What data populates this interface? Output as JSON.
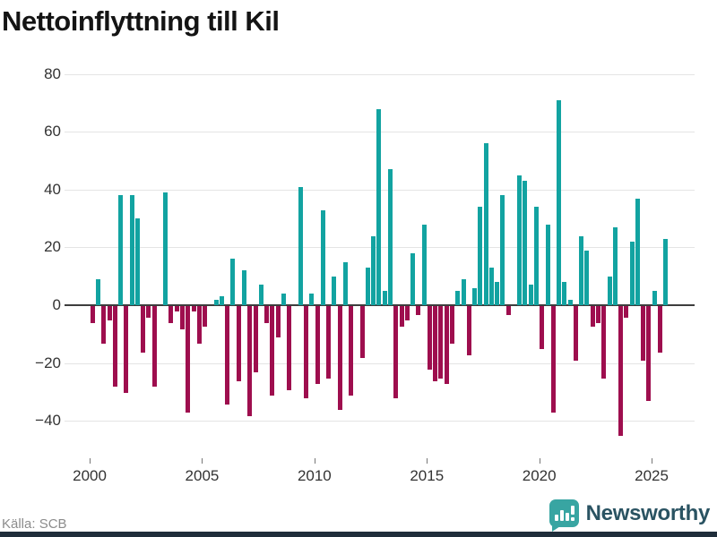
{
  "title": "Nettoinflyttning till Kil",
  "source": "Källa: SCB",
  "branding": {
    "logo_text": "Newsworthy",
    "icon_color": "#38a5a2",
    "text_color": "#2a5362",
    "bottom_bar_color": "#1f2d3a"
  },
  "colors": {
    "positive_bar": "#12a3a1",
    "negative_bar": "#9e0e4e",
    "gridline": "#e4e4e4",
    "zero_line": "#3d3d3d",
    "axis_text": "#333333"
  },
  "chart_data": {
    "type": "bar",
    "title": "Nettoinflyttning till Kil",
    "xlabel": "",
    "ylabel": "",
    "grid": true,
    "ylim": [
      -50,
      85
    ],
    "yticks": [
      80,
      60,
      40,
      20,
      0,
      -20,
      -40
    ],
    "xticks": [
      2000,
      2005,
      2010,
      2015,
      2020,
      2025
    ],
    "start_year": 2000,
    "start_quarter": 1,
    "frequency": "quarterly",
    "positive_color": "#12a3a1",
    "negative_color": "#9e0e4e",
    "values": [
      -6,
      9,
      -13,
      -5,
      -28,
      38,
      -30,
      38,
      30,
      -16,
      -4,
      -28,
      0,
      39,
      -6,
      -2,
      -8,
      -37,
      -2,
      -13,
      -7,
      0,
      2,
      3,
      -34,
      16,
      -26,
      12,
      -38,
      -23,
      7,
      -6,
      -31,
      -11,
      4,
      -29,
      0,
      41,
      -32,
      4,
      -27,
      33,
      -25,
      10,
      -36,
      15,
      -31,
      0,
      -18,
      13,
      24,
      68,
      5,
      47,
      -32,
      -7,
      -5,
      18,
      -3,
      28,
      -22,
      -26,
      -25,
      -27,
      -13,
      5,
      9,
      -17,
      6,
      34,
      56,
      13,
      8,
      38,
      -3,
      0,
      45,
      43,
      7,
      34,
      -15,
      28,
      -37,
      71,
      8,
      2,
      -19,
      24,
      19,
      -7,
      -6,
      -25,
      10,
      27,
      -45,
      -4,
      22,
      37,
      -19,
      -33,
      5,
      -16,
      23
    ]
  }
}
